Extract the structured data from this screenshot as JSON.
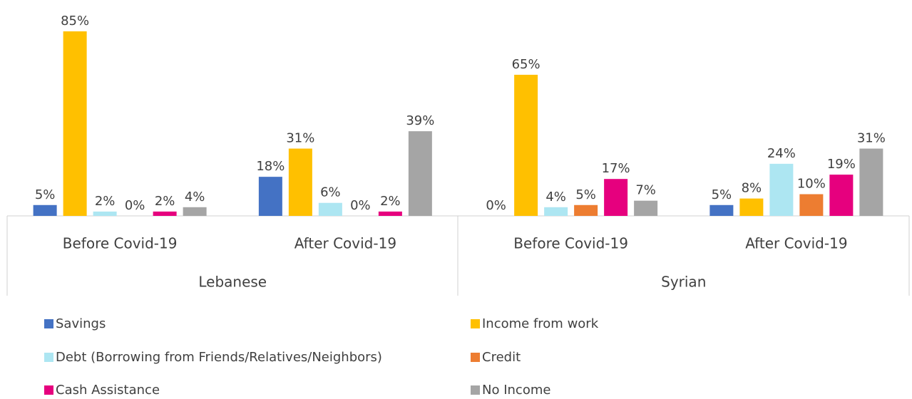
{
  "chart_data": {
    "type": "bar",
    "categories": [
      "Before Covid-19",
      "After Covid-19",
      "Before Covid-19",
      "After Covid-19"
    ],
    "group_labels": [
      "Lebanese",
      "Syrian"
    ],
    "series": [
      {
        "name": "Savings",
        "color": "#4472c4",
        "values": [
          5,
          18,
          0,
          5
        ],
        "value_labels": [
          "5%",
          "18%",
          "0%",
          "5%"
        ]
      },
      {
        "name": "Income from work",
        "color": "#ffc000",
        "values": [
          85,
          31,
          65,
          8
        ],
        "value_labels": [
          "85%",
          "31%",
          "65%",
          "8%"
        ]
      },
      {
        "name": "Debt (Borrowing from Friends/Relatives/Neighbors)",
        "color": "#ade6f2",
        "values": [
          2,
          6,
          4,
          24
        ],
        "value_labels": [
          "2%",
          "6%",
          "4%",
          "24%"
        ]
      },
      {
        "name": "Credit",
        "color": "#ed7d31",
        "values": [
          0,
          0,
          5,
          10
        ],
        "value_labels": [
          "0%",
          "0%",
          "5%",
          "10%"
        ]
      },
      {
        "name": "Cash Assistance",
        "color": "#e6007e",
        "values": [
          2,
          2,
          17,
          19
        ],
        "value_labels": [
          "2%",
          "2%",
          "17%",
          "19%"
        ]
      },
      {
        "name": "No Income",
        "color": "#a5a5a5",
        "values": [
          4,
          39,
          7,
          31
        ],
        "value_labels": [
          "4%",
          "39%",
          "7%",
          "31%"
        ]
      }
    ]
  }
}
